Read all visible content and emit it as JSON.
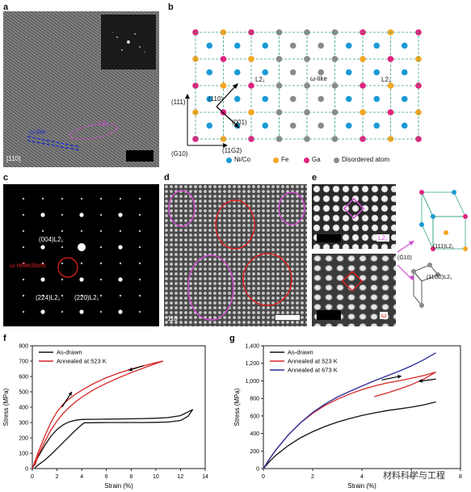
{
  "panels": {
    "a": {
      "letter": "a",
      "omega_label": "ω-like",
      "l2_label": "L2₁",
      "zone": "[110]"
    },
    "b": {
      "letter": "b",
      "l2_left": "L2₁",
      "omega_like": "ω-like",
      "l2_right": "L2₁",
      "dir_110": "(110)",
      "dir_001": "(001)",
      "dir_111": "(111)",
      "dir_m110": "(Ġ10)",
      "dir_112m": "(11Ġ2)",
      "legend": [
        "Ni/Co",
        "Fe",
        "Ga",
        "Disordered atom"
      ],
      "colors": {
        "nico": "#1a9ad6",
        "fe": "#f5a623",
        "ga": "#e0237e",
        "dis": "#8a8a8a"
      }
    },
    "c": {
      "letter": "c",
      "spot_004": "(004)L2₁",
      "omega_refl": "ω reflections",
      "spot_224": "(224)L2₁",
      "spot_220": "(220)L2₁"
    },
    "d": {
      "letter": "d",
      "zone": "110"
    },
    "e": {
      "letter": "e",
      "top_tag": "L2₁",
      "bottom_tag": "ω",
      "dir_m110": "(Ġ10)",
      "plane_111": "(111)L2₁",
      "plane_112": "(11Ġ2)L2₁"
    }
  },
  "chart_data": [
    {
      "panel": "f",
      "type": "line",
      "xlabel": "Strain (%)",
      "ylabel": "Stress (MPa)",
      "xlim": [
        0,
        14
      ],
      "ylim": [
        0,
        800
      ],
      "xticks": [
        0,
        2,
        4,
        6,
        8,
        10,
        12,
        14
      ],
      "yticks": [
        0,
        100,
        200,
        300,
        400,
        500,
        600,
        700,
        800
      ],
      "legend_position": "top-left",
      "series": [
        {
          "name": "As-drawn",
          "color": "#111111",
          "x": [
            0,
            0.5,
            1,
            1.5,
            2,
            2.5,
            3,
            3.5,
            4,
            5,
            6,
            7,
            8,
            9,
            10,
            11,
            12,
            12.5,
            13,
            12.6,
            12,
            11,
            10,
            9,
            8,
            7,
            6,
            5,
            4.2,
            4,
            3.5,
            3,
            2.5,
            2,
            1.5,
            1,
            0.5,
            0.2
          ],
          "y": [
            0,
            80,
            150,
            210,
            255,
            285,
            305,
            315,
            320,
            321,
            322,
            323,
            324,
            326,
            328,
            332,
            345,
            365,
            385,
            340,
            313,
            303,
            301,
            300,
            300,
            300,
            300,
            299,
            298,
            285,
            250,
            210,
            170,
            130,
            90,
            55,
            25,
            5
          ]
        },
        {
          "name": "Annealed at 523 K",
          "color": "#d62728",
          "x": [
            0,
            0.5,
            1,
            1.5,
            2,
            2.5,
            3,
            3.5,
            4,
            5,
            6,
            7,
            8,
            9,
            10,
            10.6,
            10,
            9,
            8,
            7,
            6,
            5,
            4,
            3.5,
            3,
            2.5,
            2,
            1.5,
            1,
            0.5,
            0.2
          ],
          "y": [
            0,
            110,
            210,
            300,
            370,
            420,
            455,
            485,
            510,
            555,
            592,
            622,
            648,
            670,
            690,
            700,
            684,
            655,
            625,
            592,
            556,
            515,
            465,
            435,
            400,
            360,
            310,
            250,
            175,
            90,
            20
          ]
        }
      ]
    },
    {
      "panel": "g",
      "type": "line",
      "xlabel": "Strain (%)",
      "ylabel": "Stress (MPa)",
      "xlim": [
        0,
        8
      ],
      "ylim": [
        0,
        1400
      ],
      "xticks": [
        0,
        2,
        4,
        6,
        8
      ],
      "yticks": [
        0,
        200,
        400,
        600,
        800,
        1000,
        1200,
        1400
      ],
      "yticklabels": [
        "0",
        "200",
        "400",
        "600",
        "800",
        "1,000",
        "1,200",
        "1,400"
      ],
      "legend_position": "top-left",
      "series": [
        {
          "name": "As-drawn",
          "color": "#111111",
          "x": [
            0,
            0.25,
            0.5,
            1,
            1.5,
            2,
            2.5,
            3,
            3.5,
            4,
            4.5,
            5,
            5.5,
            6,
            6.5,
            7
          ],
          "y": [
            0,
            80,
            150,
            260,
            350,
            420,
            480,
            530,
            570,
            605,
            635,
            660,
            680,
            700,
            725,
            760
          ]
        },
        {
          "name": "Annealed at 523 K",
          "color": "#d62728",
          "x": [
            0,
            0.25,
            0.5,
            1,
            1.5,
            2,
            2.5,
            3,
            3.5,
            4,
            4.5,
            5,
            5.5,
            6,
            6.5,
            7,
            6.5,
            6,
            5.5,
            5,
            4.5
          ],
          "y": [
            0,
            110,
            210,
            380,
            520,
            630,
            720,
            790,
            850,
            900,
            940,
            975,
            1000,
            1030,
            1060,
            1100,
            1020,
            955,
            905,
            860,
            820
          ]
        },
        {
          "name": "Annealed at 673 K",
          "color": "#2b2b9a",
          "x": [
            0,
            0.25,
            0.5,
            1,
            1.5,
            2,
            2.5,
            3,
            3.5,
            4,
            4.5,
            5,
            5.5,
            6,
            6.5,
            7
          ],
          "y": [
            0,
            110,
            210,
            380,
            520,
            640,
            735,
            815,
            880,
            940,
            1000,
            1055,
            1110,
            1170,
            1240,
            1320
          ]
        }
      ]
    }
  ],
  "watermark": "材料科学与工程"
}
